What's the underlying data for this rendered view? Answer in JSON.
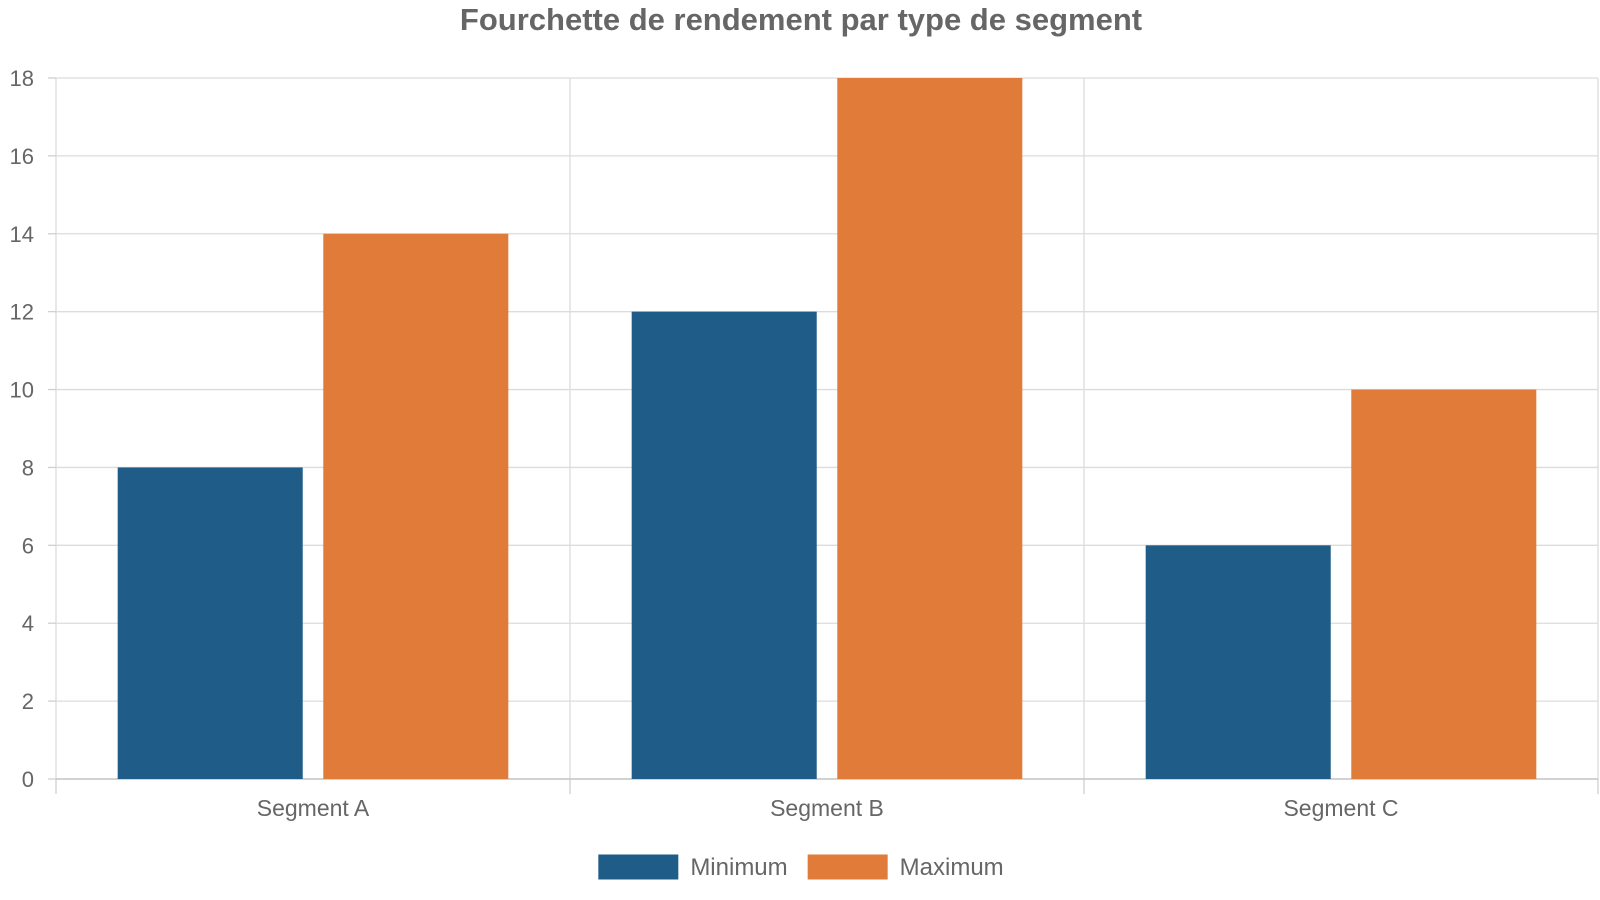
{
  "chart_data": {
    "type": "bar",
    "title": "Fourchette de rendement par type de segment",
    "xlabel": "",
    "ylabel": "",
    "categories": [
      "Segment A",
      "Segment B",
      "Segment C"
    ],
    "series": [
      {
        "name": "Minimum",
        "values": [
          8,
          12,
          6
        ],
        "color": "#1f5c87"
      },
      {
        "name": "Maximum",
        "values": [
          14,
          18,
          10
        ],
        "color": "#e07b3a"
      }
    ],
    "ylim": [
      0,
      18
    ],
    "yticks": [
      "0",
      "2",
      "4",
      "6",
      "8",
      "10",
      "12",
      "14",
      "16",
      "18"
    ],
    "grid": true,
    "legend_position": "bottom-center"
  }
}
